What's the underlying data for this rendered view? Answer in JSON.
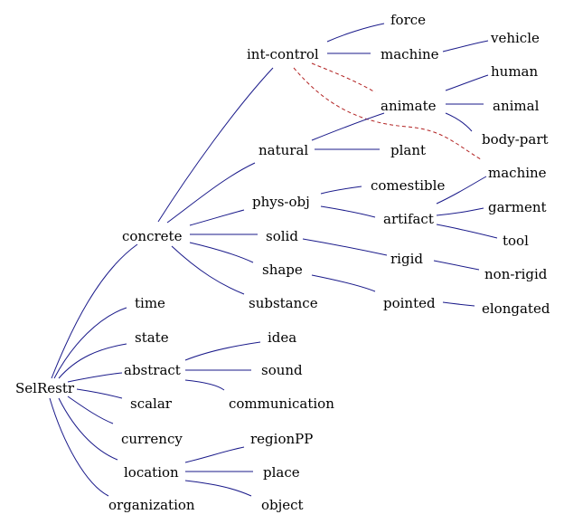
{
  "nodes": {
    "selrestr": "SelRestr",
    "time": "time",
    "state": "state",
    "abstract": "abstract",
    "scalar": "scalar",
    "currency": "currency",
    "location": "location",
    "organization": "organization",
    "idea": "idea",
    "sound": "sound",
    "communication": "communication",
    "regionpp": "regionPP",
    "place": "place",
    "object": "object",
    "concrete": "concrete",
    "int_control": "int-control",
    "natural": "natural",
    "phys_obj": "phys-obj",
    "solid": "solid",
    "shape": "shape",
    "substance": "substance",
    "force": "force",
    "machine_ic": "machine",
    "animate": "animate",
    "plant": "plant",
    "comestible": "comestible",
    "artifact": "artifact",
    "rigid": "rigid",
    "pointed": "pointed",
    "vehicle": "vehicle",
    "human": "human",
    "animal": "animal",
    "body_part": "body-part",
    "machine_art": "machine",
    "garment": "garment",
    "tool": "tool",
    "non_rigid": "non-rigid",
    "elongated": "elongated"
  },
  "colors": {
    "edge": "#1a1a8a",
    "dashed_edge": "#b22222",
    "text": "#000000",
    "background": "#ffffff"
  }
}
